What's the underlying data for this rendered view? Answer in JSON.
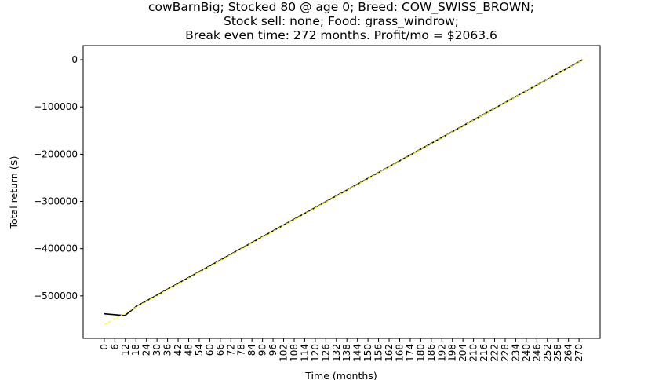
{
  "chart_data": {
    "type": "line",
    "title": [
      "cowBarnBig; Stocked 80 @ age 0; Breed: COW_SWISS_BROWN;",
      "Stock sell: none; Food: grass_windrow;",
      "Break even time: 272 months. Profit/mo = $2063.6"
    ],
    "xlabel": "Time (months)",
    "ylabel": "Total return ($)",
    "xlim": [
      -12,
      282
    ],
    "ylim": [
      -590000,
      30000
    ],
    "x_ticks": [
      0,
      6,
      12,
      18,
      24,
      30,
      36,
      42,
      48,
      54,
      60,
      66,
      72,
      78,
      84,
      90,
      96,
      102,
      108,
      114,
      120,
      126,
      132,
      138,
      144,
      150,
      156,
      162,
      168,
      174,
      180,
      186,
      192,
      198,
      204,
      210,
      216,
      222,
      228,
      234,
      240,
      246,
      252,
      258,
      264,
      270
    ],
    "y_ticks": [
      0,
      -100000,
      -200000,
      -300000,
      -400000,
      -500000
    ],
    "y_tick_labels": [
      "0",
      "−100000",
      "−200000",
      "−300000",
      "−400000",
      "−500000"
    ],
    "grid": false,
    "series": [
      {
        "color": "#000000",
        "style": "solid",
        "x": [
          0,
          11,
          12,
          18,
          272
        ],
        "y": [
          -538000,
          -541500,
          -541000,
          -523000,
          0
        ]
      },
      {
        "color": "#ffff00",
        "style": "dashed",
        "x": [
          0,
          272
        ],
        "y": [
          -561000,
          0
        ]
      }
    ]
  }
}
